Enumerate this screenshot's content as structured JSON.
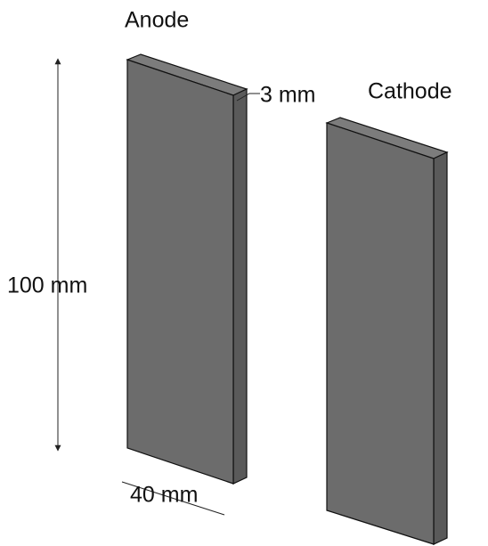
{
  "labels": {
    "anode": "Anode",
    "cathode": "Cathode",
    "height": "100 mm",
    "width": "40 mm",
    "thickness": "3 mm"
  }
}
